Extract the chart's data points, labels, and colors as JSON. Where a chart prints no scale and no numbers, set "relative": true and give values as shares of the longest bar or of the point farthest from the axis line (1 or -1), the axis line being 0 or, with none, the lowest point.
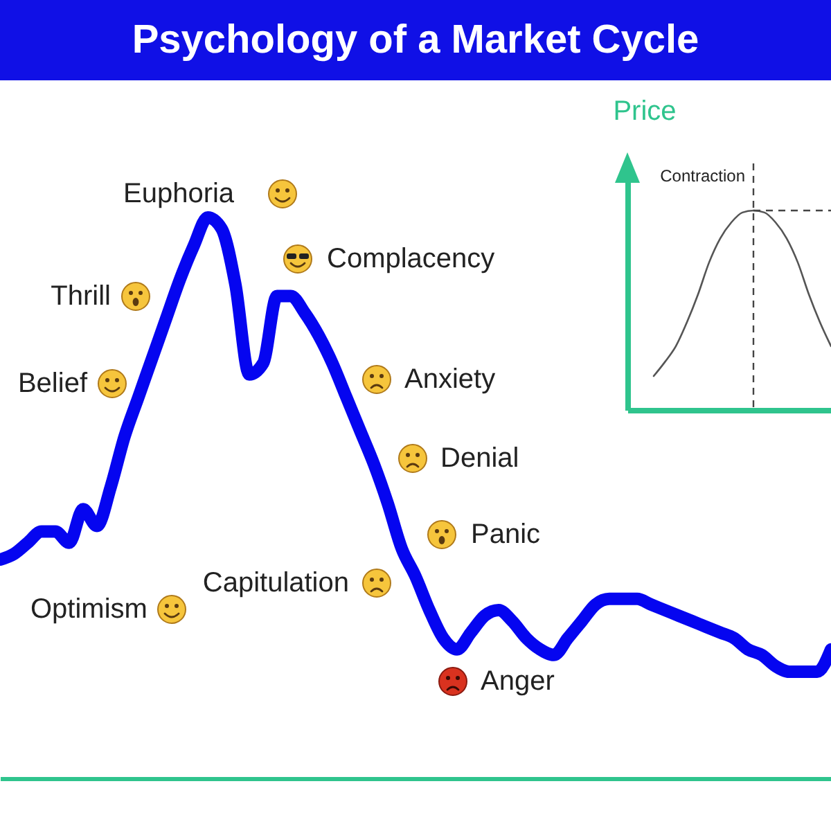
{
  "chart_data": [
    {
      "type": "line",
      "title": "Psychology of a Market Cycle",
      "relative": true,
      "categories": [
        null,
        null,
        null,
        null,
        null,
        null,
        null,
        null,
        null,
        null,
        null,
        null,
        null,
        null,
        null,
        null,
        null,
        null,
        null,
        null,
        null,
        null,
        null,
        null,
        null,
        null,
        null,
        null,
        null,
        null,
        null,
        null,
        null,
        null,
        null,
        null,
        null,
        null,
        null,
        null,
        null,
        null,
        null,
        null,
        null,
        null,
        null,
        null,
        null,
        null,
        null,
        null,
        null,
        null,
        null,
        null,
        null,
        null,
        null,
        null,
        null
      ],
      "series": [
        {
          "color": "#0505f0",
          "values": [
            0.39,
            0.4,
            0.42,
            0.44,
            0.44,
            0.42,
            0.48,
            0.45,
            0.52,
            0.61,
            0.68,
            0.75,
            0.82,
            0.89,
            0.95,
            1,
            0.98,
            0.88,
            0.72,
            0.74,
            0.86,
            0.86,
            0.83,
            0.79,
            0.74,
            0.68,
            0.62,
            0.56,
            0.49,
            0.41,
            0.36,
            0.3,
            0.25,
            0.23,
            0.26,
            0.29,
            0.3,
            0.28,
            0.25,
            0.23,
            0.22,
            0.25,
            0.28,
            0.31,
            0.32,
            0.32,
            0.32,
            0.31,
            0.3,
            0.29,
            0.28,
            0.27,
            0.26,
            0.25,
            0.23,
            0.22,
            0.2,
            0.19,
            0.19,
            0.19,
            0.23
          ]
        }
      ],
      "annotations": [
        "Optimism",
        "Belief",
        "Thrill",
        "Euphoria",
        "Complacency",
        "Anxiety",
        "Denial",
        "Panic",
        "Capitulation",
        "Anger"
      ]
    },
    {
      "type": "line",
      "ylabel": "Price",
      "relative": true,
      "categories": [
        null,
        null,
        null,
        null,
        null,
        null,
        null,
        null,
        null,
        null,
        null,
        null,
        null,
        null,
        null,
        null,
        null
      ],
      "series": [
        {
          "color": "#555555",
          "values": [
            0.17,
            0.24,
            0.32,
            0.44,
            0.58,
            0.74,
            0.86,
            0.94,
            0.99,
            1,
            0.99,
            0.94,
            0.86,
            0.74,
            0.58,
            0.44,
            0.32
          ]
        }
      ],
      "annotations": [
        "Contraction"
      ]
    }
  ]
}
